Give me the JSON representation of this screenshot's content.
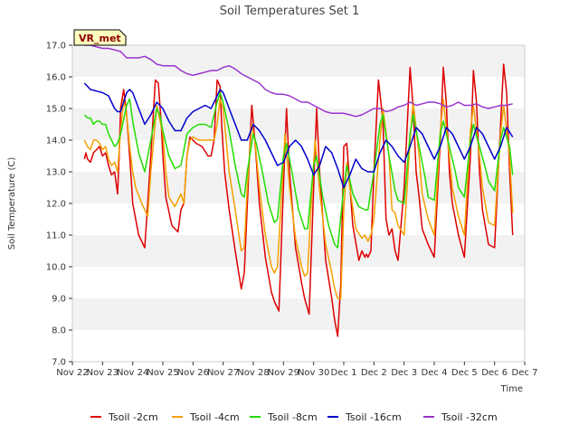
{
  "chart_data": {
    "type": "line",
    "title": "Soil Temperatures Set 1",
    "xlabel": "Time",
    "ylabel": "Soil Temperature (C)",
    "site_label": "VR_met",
    "ylim": [
      7.0,
      17.0
    ],
    "yticks": [
      7.0,
      8.0,
      9.0,
      10.0,
      11.0,
      12.0,
      13.0,
      14.0,
      15.0,
      16.0,
      17.0
    ],
    "ytick_labels": [
      "7.0",
      "8.0",
      "9.0",
      "10.0",
      "11.0",
      "12.0",
      "13.0",
      "14.0",
      "15.0",
      "16.0",
      "17.0"
    ],
    "x_unit": "days after Nov 22",
    "xlim": [
      0,
      15
    ],
    "xtick_labels": [
      "Nov 22",
      "Nov 23",
      "Nov 24",
      "Nov 25",
      "Nov 26",
      "Nov 27",
      "Nov 28",
      "Nov 29",
      "Nov 30",
      "Dec 1",
      "Dec 2",
      "Dec 3",
      "Dec 4",
      "Dec 5",
      "Dec 6",
      "Dec 7"
    ],
    "legend_position": "bottom",
    "grid": "horizontal bands",
    "series": [
      {
        "name": "Tsoil -2cm",
        "color": "#dd0000",
        "x": [
          0.4,
          0.45,
          0.5,
          0.6,
          0.7,
          0.8,
          0.9,
          1.0,
          1.1,
          1.2,
          1.3,
          1.4,
          1.5,
          1.55,
          1.6,
          1.7,
          1.8,
          1.9,
          1.95,
          2.0,
          2.2,
          2.4,
          2.6,
          2.75,
          2.85,
          2.95,
          3.0,
          3.1,
          3.3,
          3.5,
          3.6,
          3.7,
          3.8,
          3.9,
          4.0,
          4.1,
          4.3,
          4.5,
          4.6,
          4.7,
          4.8,
          4.9,
          4.95,
          5.05,
          5.2,
          5.4,
          5.6,
          5.7,
          5.85,
          5.95,
          6.05,
          6.2,
          6.4,
          6.6,
          6.7,
          6.85,
          7.0,
          7.1,
          7.2,
          7.4,
          7.6,
          7.7,
          7.85,
          8.0,
          8.1,
          8.2,
          8.4,
          8.6,
          8.7,
          8.8,
          8.9,
          9.0,
          9.1,
          9.3,
          9.5,
          9.6,
          9.7,
          9.75,
          9.8,
          9.9,
          10.0,
          10.15,
          10.3,
          10.4,
          10.5,
          10.6,
          10.7,
          10.8,
          11.0,
          11.2,
          11.3,
          11.4,
          11.5,
          11.6,
          11.8,
          12.0,
          12.2,
          12.3,
          12.4,
          12.5,
          12.6,
          12.8,
          13.0,
          13.2,
          13.3,
          13.4,
          13.5,
          13.6,
          13.8,
          14.0,
          14.2,
          14.3,
          14.4,
          14.5,
          14.6
        ],
        "values": [
          13.4,
          13.6,
          13.4,
          13.3,
          13.6,
          13.7,
          13.8,
          13.5,
          13.6,
          13.2,
          12.9,
          13.0,
          12.3,
          13.5,
          15.0,
          15.6,
          14.8,
          13.5,
          12.8,
          12.0,
          11.0,
          10.6,
          13.5,
          15.9,
          15.8,
          14.5,
          13.5,
          12.2,
          11.3,
          11.1,
          11.8,
          12.0,
          13.5,
          14.1,
          14.0,
          13.9,
          13.8,
          13.5,
          13.5,
          14.0,
          15.9,
          15.7,
          14.5,
          13.0,
          11.8,
          10.5,
          9.3,
          9.8,
          13.0,
          15.1,
          14.0,
          12.0,
          10.3,
          9.2,
          8.9,
          8.6,
          12.5,
          15.0,
          13.0,
          10.6,
          9.5,
          9.0,
          8.5,
          12.5,
          15.0,
          13.0,
          10.2,
          9.0,
          8.3,
          7.8,
          9.5,
          13.8,
          13.9,
          11.3,
          10.2,
          10.5,
          10.3,
          10.4,
          10.3,
          10.5,
          13.0,
          15.9,
          14.6,
          11.5,
          11.0,
          11.2,
          10.5,
          10.2,
          12.5,
          16.3,
          15.0,
          13.0,
          12.2,
          11.2,
          10.7,
          10.3,
          14.0,
          16.3,
          15.2,
          13.0,
          12.0,
          11.0,
          10.3,
          13.5,
          16.2,
          15.2,
          13.0,
          11.8,
          10.7,
          10.6,
          14.5,
          16.4,
          15.5,
          13.0,
          11.0
        ],
        "values_note_exclude": null
      },
      {
        "name": "Tsoil -4cm",
        "color": "#f5a000",
        "x": [
          0.4,
          0.5,
          0.6,
          0.7,
          0.8,
          0.9,
          1.0,
          1.1,
          1.2,
          1.3,
          1.4,
          1.5,
          1.6,
          1.7,
          1.8,
          1.9,
          2.0,
          2.1,
          2.3,
          2.5,
          2.6,
          2.8,
          3.0,
          3.1,
          3.2,
          3.4,
          3.6,
          3.7,
          3.8,
          3.9,
          4.0,
          4.2,
          4.4,
          4.6,
          4.7,
          4.8,
          4.9,
          5.0,
          5.1,
          5.2,
          5.4,
          5.6,
          5.7,
          5.8,
          5.95,
          6.05,
          6.2,
          6.4,
          6.6,
          6.7,
          6.8,
          6.95,
          7.05,
          7.2,
          7.4,
          7.6,
          7.7,
          7.8,
          7.95,
          8.05,
          8.2,
          8.4,
          8.6,
          8.7,
          8.8,
          8.9,
          9.0,
          9.1,
          9.2,
          9.4,
          9.6,
          9.7,
          9.8,
          9.9,
          10.0,
          10.2,
          10.3,
          10.5,
          10.6,
          10.7,
          10.8,
          11.0,
          11.2,
          11.3,
          11.5,
          11.6,
          11.8,
          12.0,
          12.2,
          12.3,
          12.5,
          12.6,
          12.8,
          13.0,
          13.2,
          13.3,
          13.5,
          13.6,
          13.8,
          14.0,
          14.2,
          14.3,
          14.5,
          14.6
        ],
        "values": [
          14.0,
          13.8,
          13.7,
          14.0,
          14.0,
          13.9,
          13.7,
          13.8,
          13.4,
          13.2,
          13.3,
          13.0,
          14.3,
          15.3,
          14.8,
          13.8,
          13.0,
          12.5,
          12.0,
          11.6,
          13.0,
          15.1,
          14.2,
          13.0,
          12.2,
          11.9,
          12.3,
          12.0,
          13.5,
          14.0,
          14.1,
          14.0,
          14.0,
          14.0,
          14.0,
          14.5,
          15.3,
          15.0,
          14.0,
          13.0,
          11.8,
          10.5,
          10.6,
          12.5,
          14.5,
          14.0,
          12.5,
          11.0,
          10.0,
          9.8,
          10.0,
          12.5,
          14.2,
          12.5,
          10.9,
          10.0,
          9.7,
          9.8,
          12.5,
          14.0,
          12.4,
          10.7,
          9.8,
          9.3,
          9.0,
          9.0,
          11.8,
          13.3,
          12.5,
          11.2,
          10.9,
          11.0,
          10.8,
          11.0,
          11.5,
          14.0,
          15.0,
          13.5,
          11.8,
          11.7,
          11.3,
          11.0,
          14.0,
          15.2,
          13.5,
          12.3,
          11.5,
          11.0,
          14.3,
          15.3,
          13.5,
          12.5,
          11.6,
          11.0,
          14.3,
          15.1,
          13.5,
          12.5,
          11.4,
          11.3,
          14.2,
          15.1,
          13.5,
          11.7
        ]
      },
      {
        "name": "Tsoil -8cm",
        "color": "#22dd00",
        "x": [
          0.4,
          0.5,
          0.6,
          0.7,
          0.8,
          0.9,
          1.0,
          1.1,
          1.2,
          1.3,
          1.4,
          1.5,
          1.6,
          1.8,
          1.9,
          2.0,
          2.2,
          2.4,
          2.6,
          2.8,
          2.9,
          3.0,
          3.2,
          3.4,
          3.6,
          3.8,
          4.0,
          4.2,
          4.4,
          4.6,
          4.7,
          4.8,
          4.9,
          5.0,
          5.2,
          5.4,
          5.6,
          5.7,
          5.8,
          6.0,
          6.1,
          6.3,
          6.5,
          6.7,
          6.8,
          7.0,
          7.1,
          7.3,
          7.5,
          7.7,
          7.8,
          8.0,
          8.1,
          8.3,
          8.5,
          8.7,
          8.8,
          9.0,
          9.1,
          9.3,
          9.5,
          9.7,
          9.8,
          10.0,
          10.2,
          10.3,
          10.5,
          10.7,
          10.8,
          11.0,
          11.2,
          11.3,
          11.5,
          11.7,
          11.8,
          12.0,
          12.2,
          12.3,
          12.5,
          12.7,
          12.8,
          13.0,
          13.2,
          13.3,
          13.5,
          13.7,
          13.8,
          14.0,
          14.2,
          14.3,
          14.5,
          14.6
        ],
        "values": [
          14.8,
          14.7,
          14.7,
          14.5,
          14.6,
          14.6,
          14.5,
          14.5,
          14.2,
          14.0,
          13.8,
          13.9,
          14.2,
          15.1,
          15.3,
          14.6,
          13.6,
          13.0,
          14.0,
          15.0,
          14.8,
          14.3,
          13.5,
          13.1,
          13.2,
          14.2,
          14.4,
          14.5,
          14.5,
          14.4,
          14.8,
          15.2,
          15.5,
          15.2,
          14.3,
          13.2,
          12.3,
          12.2,
          13.0,
          14.2,
          13.9,
          13.0,
          12.0,
          11.4,
          11.5,
          13.5,
          13.9,
          12.9,
          11.8,
          11.2,
          11.2,
          13.2,
          13.5,
          12.2,
          11.3,
          10.7,
          10.6,
          12.5,
          13.2,
          12.3,
          11.9,
          11.8,
          11.8,
          13.0,
          14.5,
          14.8,
          13.5,
          12.4,
          12.1,
          12.0,
          14.2,
          14.8,
          13.8,
          12.8,
          12.2,
          12.1,
          14.2,
          14.6,
          13.8,
          13.0,
          12.5,
          12.2,
          14.0,
          14.5,
          13.8,
          13.1,
          12.7,
          12.4,
          14.0,
          14.4,
          13.8,
          12.9
        ]
      },
      {
        "name": "Tsoil -16cm",
        "color": "#0000cc",
        "x": [
          0.4,
          0.5,
          0.6,
          0.8,
          1.0,
          1.2,
          1.3,
          1.4,
          1.5,
          1.6,
          1.7,
          1.8,
          1.9,
          2.0,
          2.2,
          2.4,
          2.6,
          2.8,
          3.0,
          3.2,
          3.4,
          3.6,
          3.8,
          4.0,
          4.2,
          4.4,
          4.6,
          4.8,
          4.9,
          5.0,
          5.2,
          5.4,
          5.6,
          5.8,
          6.0,
          6.2,
          6.4,
          6.6,
          6.8,
          7.0,
          7.2,
          7.4,
          7.6,
          7.8,
          8.0,
          8.2,
          8.4,
          8.6,
          8.8,
          9.0,
          9.2,
          9.4,
          9.6,
          9.8,
          10.0,
          10.2,
          10.4,
          10.6,
          10.8,
          11.0,
          11.2,
          11.4,
          11.6,
          11.8,
          12.0,
          12.2,
          12.4,
          12.6,
          12.8,
          13.0,
          13.2,
          13.4,
          13.6,
          13.8,
          14.0,
          14.2,
          14.4,
          14.6
        ],
        "values": [
          15.8,
          15.7,
          15.6,
          15.55,
          15.5,
          15.4,
          15.2,
          15.0,
          14.9,
          14.9,
          15.2,
          15.5,
          15.6,
          15.5,
          15.0,
          14.5,
          14.8,
          15.2,
          15.0,
          14.6,
          14.3,
          14.3,
          14.7,
          14.9,
          15.0,
          15.1,
          15.0,
          15.4,
          15.6,
          15.5,
          15.0,
          14.5,
          14.0,
          14.0,
          14.5,
          14.3,
          14.0,
          13.6,
          13.2,
          13.3,
          13.8,
          14.0,
          13.8,
          13.4,
          12.9,
          13.2,
          13.8,
          13.6,
          13.1,
          12.5,
          12.9,
          13.4,
          13.1,
          13.0,
          13.0,
          13.6,
          14.0,
          13.8,
          13.5,
          13.3,
          13.8,
          14.4,
          14.2,
          13.8,
          13.4,
          13.8,
          14.4,
          14.2,
          13.8,
          13.4,
          13.8,
          14.4,
          14.2,
          13.8,
          13.4,
          13.8,
          14.4,
          14.1
        ]
      },
      {
        "name": "Tsoil -32cm",
        "color": "#9933cc",
        "x": [
          0.4,
          0.6,
          0.8,
          1.0,
          1.2,
          1.4,
          1.6,
          1.8,
          2.0,
          2.2,
          2.4,
          2.6,
          2.8,
          3.0,
          3.2,
          3.4,
          3.6,
          3.8,
          4.0,
          4.2,
          4.4,
          4.6,
          4.8,
          5.0,
          5.2,
          5.4,
          5.6,
          5.8,
          6.0,
          6.2,
          6.4,
          6.6,
          6.8,
          7.0,
          7.2,
          7.4,
          7.6,
          7.8,
          8.0,
          8.2,
          8.4,
          8.6,
          8.8,
          9.0,
          9.2,
          9.4,
          9.6,
          9.8,
          10.0,
          10.2,
          10.4,
          10.6,
          10.8,
          11.0,
          11.2,
          11.4,
          11.6,
          11.8,
          12.0,
          12.2,
          12.4,
          12.6,
          12.8,
          13.0,
          13.2,
          13.4,
          13.6,
          13.8,
          14.0,
          14.2,
          14.4,
          14.6
        ],
        "values": [
          17.0,
          17.0,
          16.95,
          16.9,
          16.9,
          16.85,
          16.8,
          16.6,
          16.6,
          16.6,
          16.65,
          16.55,
          16.4,
          16.35,
          16.35,
          16.35,
          16.2,
          16.1,
          16.05,
          16.1,
          16.15,
          16.2,
          16.2,
          16.3,
          16.35,
          16.25,
          16.1,
          16.0,
          15.9,
          15.8,
          15.6,
          15.5,
          15.45,
          15.45,
          15.4,
          15.3,
          15.2,
          15.2,
          15.1,
          15.0,
          14.9,
          14.85,
          14.85,
          14.85,
          14.8,
          14.75,
          14.8,
          14.9,
          15.0,
          15.0,
          14.9,
          14.95,
          15.05,
          15.1,
          15.2,
          15.1,
          15.15,
          15.2,
          15.2,
          15.15,
          15.05,
          15.1,
          15.2,
          15.1,
          15.1,
          15.15,
          15.05,
          15.0,
          15.05,
          15.1,
          15.1,
          15.15
        ]
      }
    ]
  }
}
